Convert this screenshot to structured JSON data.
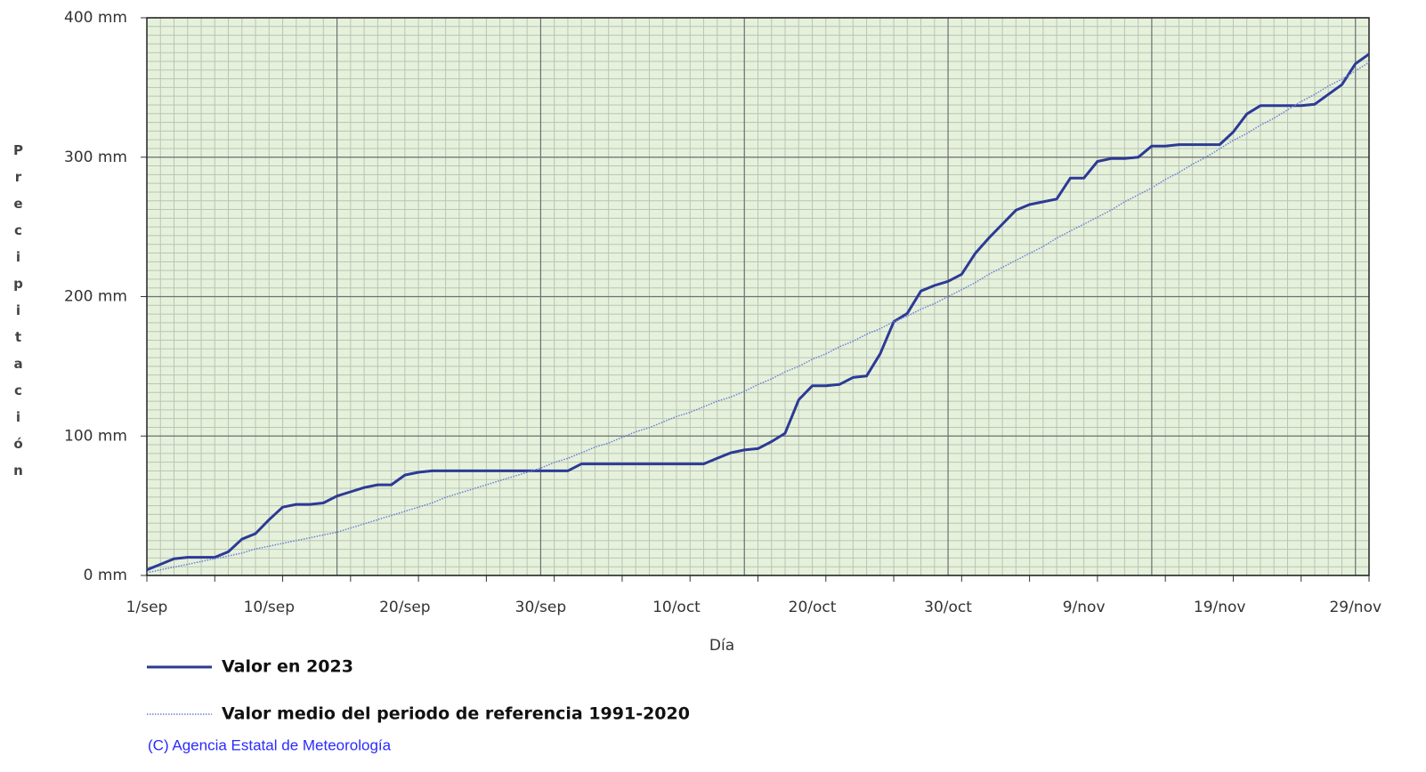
{
  "chart_data": {
    "type": "line",
    "y_label": "Precipitación",
    "x_label": "Día",
    "credit": "(C) Agencia Estatal de Meteorología",
    "categories": [
      "1/sep",
      null,
      null,
      null,
      null,
      null,
      null,
      null,
      null,
      "10/sep",
      null,
      null,
      null,
      null,
      null,
      null,
      null,
      null,
      null,
      "20/sep",
      null,
      null,
      null,
      null,
      null,
      null,
      null,
      null,
      null,
      "30/sep",
      null,
      null,
      null,
      null,
      null,
      null,
      null,
      null,
      null,
      "10/oct",
      null,
      null,
      null,
      null,
      null,
      null,
      null,
      null,
      null,
      "20/oct",
      null,
      null,
      null,
      null,
      null,
      null,
      null,
      null,
      null,
      "30/oct",
      null,
      null,
      null,
      null,
      null,
      null,
      null,
      null,
      null,
      "9/nov",
      null,
      null,
      null,
      null,
      null,
      null,
      null,
      null,
      null,
      "19/nov",
      null,
      null,
      null,
      null,
      null,
      null,
      null,
      null,
      null,
      "29/nov",
      null
    ],
    "series": [
      {
        "name": "Valor en 2023",
        "color": "#2c3a95",
        "style": "solid",
        "values": [
          4,
          8,
          12,
          13,
          13,
          13,
          17,
          26,
          30,
          40,
          49,
          51,
          51,
          52,
          57,
          60,
          63,
          65,
          65,
          72,
          74,
          75,
          75,
          75,
          75,
          75,
          75,
          75,
          75,
          75,
          75,
          75,
          80,
          80,
          80,
          80,
          80,
          80,
          80,
          80,
          80,
          80,
          84,
          88,
          90,
          91,
          96,
          102,
          126,
          136,
          136,
          137,
          142,
          143,
          159,
          182,
          188,
          204,
          208,
          211,
          216,
          231,
          242,
          252,
          262,
          266,
          268,
          270,
          285,
          285,
          297,
          299,
          299,
          300,
          308,
          308,
          309,
          309,
          309,
          309,
          318,
          331,
          337,
          337,
          337,
          337,
          338,
          345,
          352,
          367,
          374
        ]
      },
      {
        "name": "Valor medio del periodo de referencia 1991-2020",
        "color": "#6a7fd4",
        "style": "dotted",
        "values": [
          2,
          4,
          6,
          8,
          10,
          12,
          14,
          16,
          19,
          21,
          23,
          25,
          27,
          29,
          31,
          34,
          37,
          40,
          43,
          46,
          49,
          52,
          56,
          59,
          62,
          65,
          68,
          71,
          74,
          77,
          81,
          84,
          88,
          92,
          95,
          99,
          103,
          106,
          110,
          114,
          117,
          121,
          125,
          128,
          132,
          137,
          141,
          146,
          150,
          155,
          159,
          164,
          168,
          173,
          177,
          182,
          186,
          191,
          195,
          200,
          205,
          210,
          216,
          221,
          226,
          231,
          236,
          242,
          247,
          252,
          257,
          262,
          268,
          273,
          278,
          284,
          289,
          295,
          300,
          306,
          312,
          317,
          323,
          328,
          334,
          340,
          345,
          351,
          356,
          362,
          368
        ]
      }
    ],
    "ylim": [
      0,
      400
    ],
    "yticks": [
      {
        "value": 0,
        "label": "0 mm"
      },
      {
        "value": 100,
        "label": "100 mm"
      },
      {
        "value": 200,
        "label": "200 mm"
      },
      {
        "value": 300,
        "label": "300 mm"
      },
      {
        "value": 400,
        "label": "400 mm"
      }
    ],
    "grid": true
  }
}
